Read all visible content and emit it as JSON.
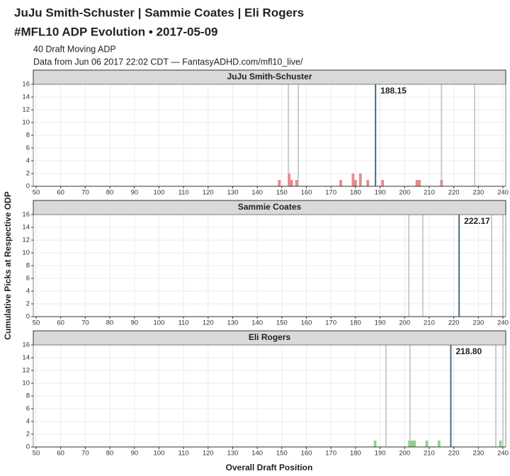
{
  "header": {
    "title": "JuJu Smith-Schuster | Sammie Coates | Eli Rogers",
    "title2": "#MFL10 ADP Evolution • 2017-05-09",
    "subtitle": "40 Draft Moving ADP",
    "caption": "Data from Jun 06 2017 22:02 CDT — FantasyADHD.com/mfl10_live/",
    "x_label": "Overall Draft Position",
    "y_label": "Cumulative Picks at Respective ODP"
  },
  "chart_data": [
    {
      "type": "bar",
      "title": "JuJu Smith-Schuster",
      "color": "#e88a8a",
      "x": [
        149,
        153,
        154,
        156,
        174,
        179,
        180,
        182,
        185,
        191,
        205,
        206,
        215
      ],
      "values": [
        1,
        2,
        1,
        1,
        1,
        2,
        1,
        2,
        1,
        1,
        1,
        1,
        1
      ],
      "adp": 188.15,
      "adp_label": "188.15",
      "reference_lines": [
        152.7,
        156.7,
        215,
        228.5
      ],
      "xlim": [
        50,
        240
      ],
      "xticks": [
        50,
        60,
        70,
        80,
        90,
        100,
        110,
        120,
        130,
        140,
        150,
        160,
        170,
        180,
        190,
        200,
        210,
        220,
        230,
        240
      ],
      "ylim": [
        0,
        16
      ],
      "yticks": [
        0,
        2,
        4,
        6,
        8,
        10,
        12,
        14,
        16
      ],
      "grid": true
    },
    {
      "type": "bar",
      "title": "Sammie Coates",
      "color": "#e88a8a",
      "x": [],
      "values": [],
      "adp": 222.17,
      "adp_label": "222.17",
      "reference_lines": [
        201.7,
        207.4,
        235.4,
        240
      ],
      "xlim": [
        50,
        240
      ],
      "xticks": [
        50,
        60,
        70,
        80,
        90,
        100,
        110,
        120,
        130,
        140,
        150,
        160,
        170,
        180,
        190,
        200,
        210,
        220,
        230,
        240
      ],
      "ylim": [
        0,
        16
      ],
      "yticks": [
        0,
        2,
        4,
        6,
        8,
        10,
        12,
        14,
        16
      ],
      "grid": true
    },
    {
      "type": "bar",
      "title": "Eli Rogers",
      "color": "#8fd08f",
      "x": [
        188,
        202,
        203,
        204,
        209,
        214,
        239
      ],
      "values": [
        1,
        1,
        1,
        1,
        1,
        1,
        1
      ],
      "adp": 218.8,
      "adp_label": "218.80",
      "reference_lines": [
        192.4,
        202.2,
        237.1,
        240
      ],
      "xlim": [
        50,
        240
      ],
      "xticks": [
        50,
        60,
        70,
        80,
        90,
        100,
        110,
        120,
        130,
        140,
        150,
        160,
        170,
        180,
        190,
        200,
        210,
        220,
        230,
        240
      ],
      "ylim": [
        0,
        16
      ],
      "yticks": [
        0,
        2,
        4,
        6,
        8,
        10,
        12,
        14,
        16
      ],
      "grid": true
    }
  ]
}
